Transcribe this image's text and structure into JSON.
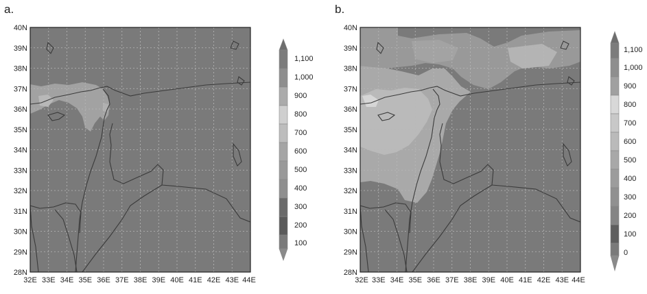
{
  "panels": [
    {
      "label": "a.",
      "lat_ticks": [
        "40N",
        "39N",
        "38N",
        "37N",
        "36N",
        "35N",
        "34N",
        "33N",
        "32N",
        "31N",
        "30N",
        "29N",
        "28N"
      ],
      "lon_ticks": [
        "32E",
        "33E",
        "34E",
        "35E",
        "36E",
        "37E",
        "38E",
        "39E",
        "40E",
        "41E",
        "42E",
        "43E",
        "44E"
      ],
      "colorbar_ticks": [
        "1,100",
        "1,000",
        "900",
        "800",
        "700",
        "600",
        "500",
        "400",
        "300",
        "200",
        "100"
      ]
    },
    {
      "label": "b.",
      "lat_ticks": [
        "40N",
        "39N",
        "38N",
        "37N",
        "36N",
        "35N",
        "34N",
        "33N",
        "32N",
        "31N",
        "30N",
        "29N",
        "28N"
      ],
      "lon_ticks": [
        "32E",
        "33E",
        "34E",
        "35E",
        "36E",
        "37E",
        "38E",
        "39E",
        "40E",
        "41E",
        "42E",
        "43E",
        "44E"
      ],
      "colorbar_ticks": [
        "1,100",
        "1,000",
        "900",
        "800",
        "700",
        "600",
        "500",
        "400",
        "300",
        "200",
        "100",
        "0"
      ]
    }
  ],
  "colors": {
    "background_field": "#7a7a7a",
    "light_field": "#a5a5a5",
    "lighter_field": "#bdbdbd",
    "border": "#3a3a3a",
    "grid": "#b9b9b9"
  }
}
